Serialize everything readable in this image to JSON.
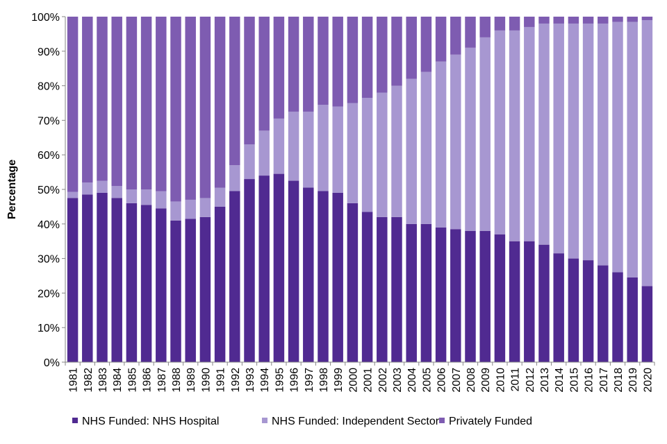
{
  "chart_data": {
    "type": "bar",
    "stacked": true,
    "percent": true,
    "title": "",
    "xlabel": "",
    "ylabel": "Percentage",
    "ylim": [
      0,
      100
    ],
    "yticks": [
      "0%",
      "10%",
      "20%",
      "30%",
      "40%",
      "50%",
      "60%",
      "70%",
      "80%",
      "90%",
      "100%"
    ],
    "grid": false,
    "legend_position": "bottom",
    "categories": [
      "1981",
      "1982",
      "1983",
      "1984",
      "1985",
      "1986",
      "1987",
      "1988",
      "1989",
      "1990",
      "1991",
      "1992",
      "1993",
      "1994",
      "1995",
      "1996",
      "1997",
      "1998",
      "1999",
      "2000",
      "2001",
      "2002",
      "2003",
      "2004",
      "2005",
      "2006",
      "2007",
      "2008",
      "2009",
      "2010",
      "2011",
      "2012",
      "2013",
      "2014",
      "2015",
      "2016",
      "2017",
      "2018",
      "2019",
      "2020"
    ],
    "series": [
      {
        "name": "NHS Funded: NHS Hospital",
        "color": "#502a91",
        "values": [
          47.5,
          48.5,
          49.0,
          47.5,
          46.0,
          45.5,
          44.5,
          41.0,
          41.5,
          42.0,
          45.0,
          49.5,
          53.0,
          54.0,
          54.5,
          52.5,
          50.5,
          49.5,
          49.0,
          46.0,
          43.5,
          42.0,
          42.0,
          40.0,
          40.0,
          39.0,
          38.5,
          38.0,
          38.0,
          37.0,
          35.0,
          35.0,
          34.0,
          31.5,
          30.0,
          29.5,
          28.0,
          26.0,
          24.5,
          22.0
        ]
      },
      {
        "name": "NHS Funded: Independent Sector",
        "color": "#a797d1",
        "values": [
          1.8,
          3.5,
          3.5,
          3.5,
          4.0,
          4.5,
          5.0,
          5.5,
          5.5,
          5.5,
          5.5,
          7.5,
          10.0,
          13.0,
          16.0,
          20.0,
          22.0,
          25.0,
          25.0,
          29.0,
          33.0,
          36.0,
          38.0,
          42.0,
          44.0,
          48.0,
          50.5,
          53.0,
          56.0,
          59.0,
          61.0,
          62.0,
          64.0,
          66.5,
          68.0,
          68.5,
          70.0,
          72.5,
          74.0,
          77.0
        ]
      },
      {
        "name": "Privately Funded",
        "color": "#7e5cb1",
        "values": [
          50.7,
          48.0,
          47.5,
          49.0,
          50.0,
          50.0,
          50.5,
          53.5,
          53.0,
          52.5,
          49.5,
          43.0,
          37.0,
          33.0,
          29.5,
          27.5,
          27.5,
          25.5,
          26.0,
          25.0,
          23.5,
          22.0,
          20.0,
          18.0,
          16.0,
          13.0,
          11.0,
          9.0,
          6.0,
          4.0,
          4.0,
          3.0,
          2.0,
          2.0,
          2.0,
          2.0,
          2.0,
          1.5,
          1.5,
          1.0
        ]
      }
    ]
  }
}
